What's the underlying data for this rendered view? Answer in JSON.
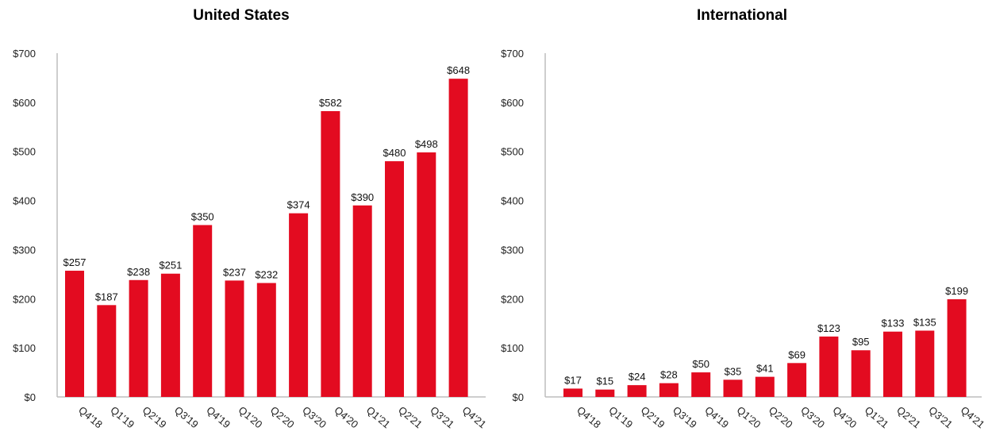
{
  "colors": {
    "bar": "#e30b20",
    "axis": "#bdbdbd"
  },
  "chart_data": [
    {
      "type": "bar",
      "title": "United States",
      "xlabel": "",
      "ylabel": "",
      "ylim": [
        0,
        700
      ],
      "yticks": [
        "$0",
        "$100",
        "$200",
        "$300",
        "$400",
        "$500",
        "$600",
        "$700"
      ],
      "ytick_values": [
        0,
        100,
        200,
        300,
        400,
        500,
        600,
        700
      ],
      "grid": false,
      "categories": [
        "Q4'18",
        "Q1'19",
        "Q2'19",
        "Q3'19",
        "Q4'19",
        "Q1'20",
        "Q2'20",
        "Q3'20",
        "Q4'20",
        "Q1'21",
        "Q2'21",
        "Q3'21",
        "Q4'21"
      ],
      "values": [
        257,
        187,
        238,
        251,
        350,
        237,
        232,
        374,
        582,
        390,
        480,
        498,
        648
      ],
      "data_labels": [
        "$257",
        "$187",
        "$238",
        "$251",
        "$350",
        "$237",
        "$232",
        "$374",
        "$582",
        "$390",
        "$480",
        "$498",
        "$648"
      ]
    },
    {
      "type": "bar",
      "title": "International",
      "xlabel": "",
      "ylabel": "",
      "ylim": [
        0,
        700
      ],
      "yticks": [
        "$0",
        "$100",
        "$200",
        "$300",
        "$400",
        "$500",
        "$600",
        "$700"
      ],
      "ytick_values": [
        0,
        100,
        200,
        300,
        400,
        500,
        600,
        700
      ],
      "grid": false,
      "categories": [
        "Q4'18",
        "Q1'19",
        "Q2'19",
        "Q3'19",
        "Q4'19",
        "Q1'20",
        "Q2'20",
        "Q3'20",
        "Q4'20",
        "Q1'21",
        "Q2'21",
        "Q3'21",
        "Q4'21"
      ],
      "values": [
        17,
        15,
        24,
        28,
        50,
        35,
        41,
        69,
        123,
        95,
        133,
        135,
        199
      ],
      "data_labels": [
        "$17",
        "$15",
        "$24",
        "$28",
        "$50",
        "$35",
        "$41",
        "$69",
        "$123",
        "$95",
        "$133",
        "$135",
        "$199"
      ]
    }
  ]
}
